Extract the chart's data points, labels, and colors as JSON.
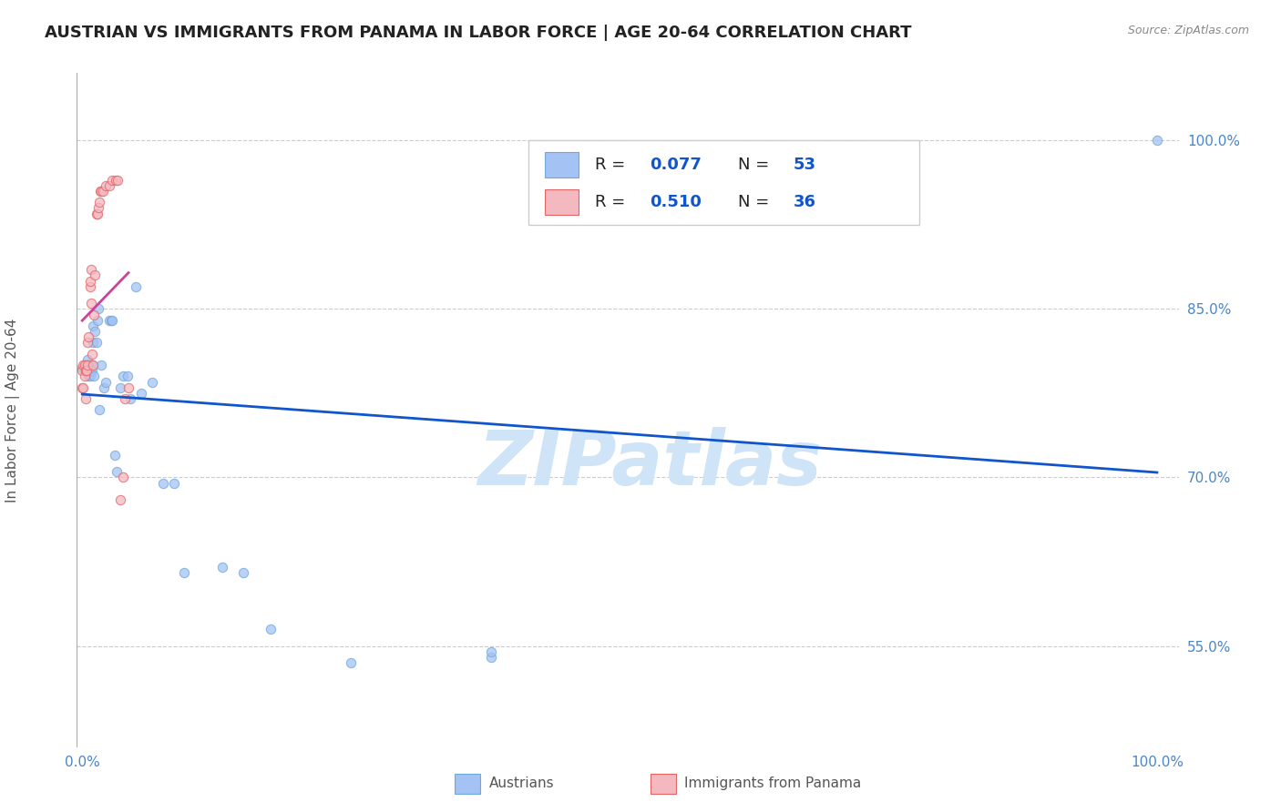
{
  "title": "AUSTRIAN VS IMMIGRANTS FROM PANAMA IN LABOR FORCE | AGE 20-64 CORRELATION CHART",
  "source": "Source: ZipAtlas.com",
  "ylabel": "In Labor Force | Age 20-64",
  "watermark": "ZIPatlas",
  "R_austrians": 0.077,
  "N_austrians": 53,
  "R_panama": 0.51,
  "N_panama": 36,
  "austrians_x": [
    0.0,
    0.002,
    0.003,
    0.003,
    0.004,
    0.004,
    0.005,
    0.005,
    0.005,
    0.006,
    0.006,
    0.006,
    0.007,
    0.007,
    0.007,
    0.008,
    0.008,
    0.009,
    0.009,
    0.009,
    0.01,
    0.01,
    0.011,
    0.012,
    0.013,
    0.014,
    0.015,
    0.016,
    0.018,
    0.02,
    0.022,
    0.025,
    0.027,
    0.028,
    0.03,
    0.032,
    0.035,
    0.038,
    0.042,
    0.045,
    0.05,
    0.055,
    0.065,
    0.075,
    0.085,
    0.095,
    0.13,
    0.15,
    0.175,
    0.25,
    0.38,
    0.38,
    1.0
  ],
  "austrians_y": [
    0.798,
    0.795,
    0.8,
    0.795,
    0.8,
    0.795,
    0.805,
    0.8,
    0.795,
    0.8,
    0.795,
    0.79,
    0.8,
    0.795,
    0.79,
    0.8,
    0.8,
    0.8,
    0.8,
    0.795,
    0.835,
    0.82,
    0.79,
    0.83,
    0.82,
    0.84,
    0.85,
    0.76,
    0.8,
    0.78,
    0.785,
    0.84,
    0.84,
    0.84,
    0.72,
    0.705,
    0.78,
    0.79,
    0.79,
    0.77,
    0.87,
    0.775,
    0.785,
    0.695,
    0.695,
    0.615,
    0.62,
    0.615,
    0.565,
    0.535,
    0.54,
    0.545,
    1.0
  ],
  "panama_x": [
    0.0,
    0.0,
    0.001,
    0.001,
    0.002,
    0.002,
    0.003,
    0.003,
    0.004,
    0.005,
    0.005,
    0.006,
    0.007,
    0.007,
    0.008,
    0.008,
    0.009,
    0.01,
    0.011,
    0.012,
    0.013,
    0.014,
    0.015,
    0.016,
    0.017,
    0.018,
    0.019,
    0.022,
    0.025,
    0.028,
    0.031,
    0.033,
    0.035,
    0.038,
    0.04,
    0.043
  ],
  "panama_y": [
    0.795,
    0.78,
    0.8,
    0.78,
    0.8,
    0.79,
    0.795,
    0.77,
    0.795,
    0.82,
    0.8,
    0.825,
    0.87,
    0.875,
    0.885,
    0.855,
    0.81,
    0.8,
    0.845,
    0.88,
    0.935,
    0.935,
    0.94,
    0.945,
    0.955,
    0.955,
    0.955,
    0.96,
    0.96,
    0.965,
    0.965,
    0.965,
    0.68,
    0.7,
    0.77,
    0.78
  ],
  "background_color": "#ffffff",
  "grid_color": "#cccccc",
  "austrian_dot_color": "#a4c2f4",
  "austrian_dot_edge": "#6fa8dc",
  "panama_dot_color": "#f4b8c1",
  "panama_dot_edge": "#e06666",
  "blue_line_color": "#1155cc",
  "pink_line_color": "#cc4499",
  "tick_color": "#4a86c8",
  "ylabel_color": "#555555",
  "title_color": "#222222",
  "source_color": "#888888",
  "watermark_color": "#d0e4f7",
  "dot_size": 55,
  "dot_alpha": 0.75,
  "title_fontsize": 13,
  "ylabel_fontsize": 11,
  "tick_fontsize": 11,
  "legend_fontsize": 13,
  "source_fontsize": 9,
  "watermark_fontsize": 60,
  "xlim": [
    -0.005,
    1.02
  ],
  "ylim": [
    0.46,
    1.06
  ],
  "y_ticks": [
    0.55,
    0.7,
    0.85,
    1.0
  ],
  "y_tick_labels": [
    "55.0%",
    "70.0%",
    "85.0%",
    "100.0%"
  ],
  "x_ticks": [
    0.0,
    1.0
  ],
  "x_tick_labels": [
    "0.0%",
    "100.0%"
  ]
}
